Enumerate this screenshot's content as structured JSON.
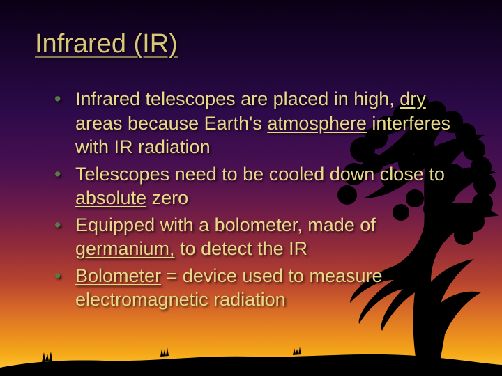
{
  "slide": {
    "title": "Infrared (IR)",
    "title_color": "#d8c878",
    "bullet_color": "#5a7a45",
    "body_color": "#e8d888",
    "bullets": [
      {
        "parts": [
          {
            "t": "Infrared telescopes are placed in high, ",
            "u": false
          },
          {
            "t": "dry",
            "u": true
          },
          {
            "t": " areas because Earth's ",
            "u": false
          },
          {
            "t": "atmosphere",
            "u": true
          },
          {
            "t": " interferes with IR radiation",
            "u": false
          }
        ]
      },
      {
        "parts": [
          {
            "t": "Telescopes need to be cooled down close to ",
            "u": false
          },
          {
            "t": "absolute",
            "u": true
          },
          {
            "t": " zero",
            "u": false
          }
        ]
      },
      {
        "parts": [
          {
            "t": "Equipped with a bolometer, made of ",
            "u": false
          },
          {
            "t": "germanium,",
            "u": true
          },
          {
            "t": " to detect the IR",
            "u": false
          }
        ]
      },
      {
        "parts": [
          {
            "t": "Bolometer",
            "u": true
          },
          {
            "t": " = device used to measure electromagnetic radiation",
            "u": false
          }
        ]
      }
    ]
  },
  "art": {
    "tree_color": "#000000",
    "ground_color": "#000000"
  }
}
